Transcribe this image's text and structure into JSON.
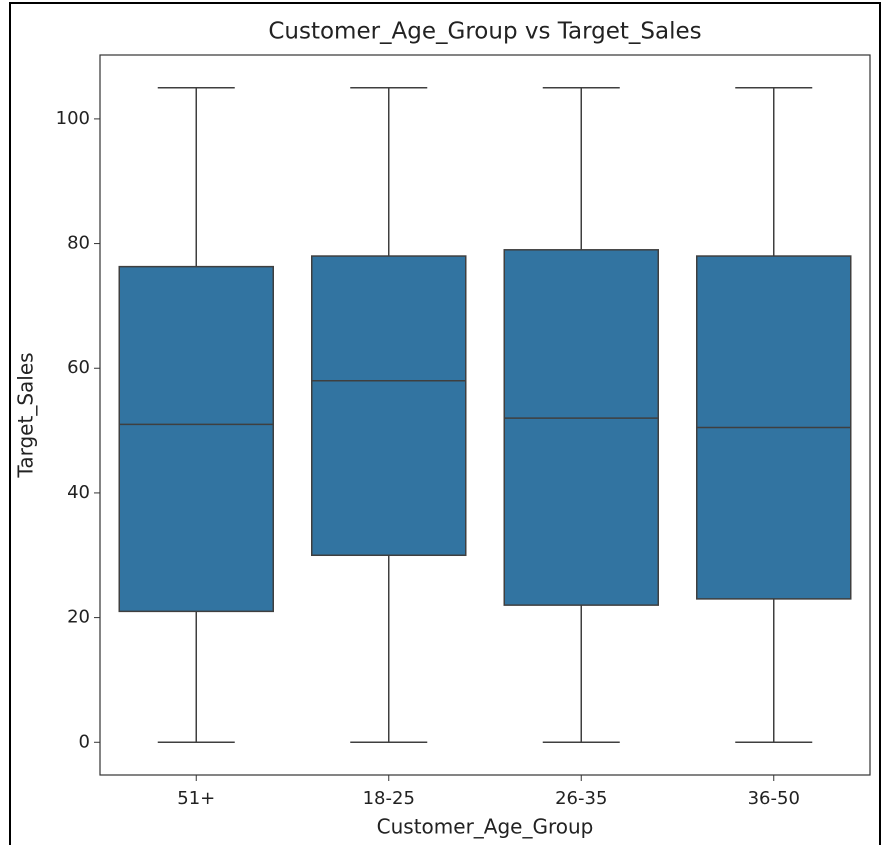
{
  "chart_data": {
    "type": "box",
    "title": "Customer_Age_Group vs Target_Sales",
    "x_label": "Customer_Age_Group",
    "y_label": "Target_Sales",
    "categories": [
      "51+",
      "18-25",
      "26-35",
      "36-50"
    ],
    "min": [
      0,
      0,
      0,
      0
    ],
    "q1": [
      21,
      30,
      22,
      23
    ],
    "median": [
      51,
      58,
      52,
      50.5
    ],
    "q3": [
      76.3,
      78,
      79,
      78
    ],
    "max": [
      105,
      105,
      105,
      105
    ],
    "color": "#3274a1",
    "ylim": [
      -5.25,
      110.25
    ],
    "yticks": [
      0,
      20,
      40,
      60,
      80,
      100
    ],
    "grid": false
  }
}
